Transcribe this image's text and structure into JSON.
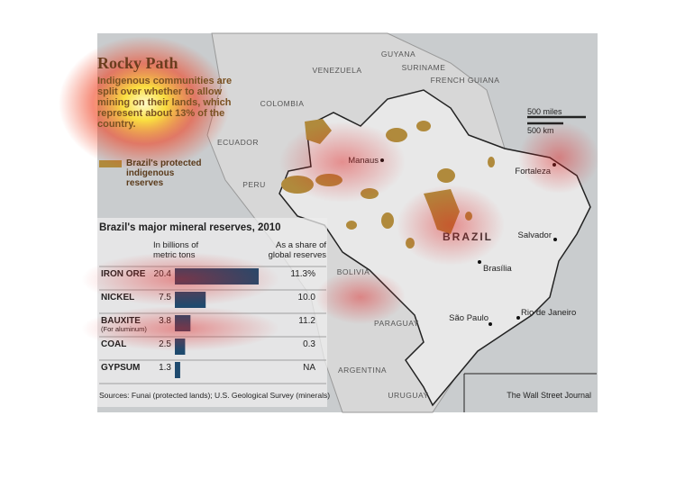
{
  "header": {
    "title": "Rocky Path",
    "subtitle": "Indigenous communities are split over whether to allow mining on their lands, which represent about 13% of the country."
  },
  "legend": {
    "label": "Brazil's protected indigenous reserves"
  },
  "map": {
    "countries": [
      "VENEZUELA",
      "GUYANA",
      "SURINAME",
      "FRENCH GUIANA",
      "COLOMBIA",
      "ECUADOR",
      "PERU",
      "BOLIVIA",
      "PARAGUAY",
      "ARGENTINA",
      "URUGUAY",
      "BRAZIL"
    ],
    "cities": [
      "Manaus",
      "Fortaleza",
      "Salvador",
      "Brasília",
      "São Paulo",
      "Rio de Janeiro"
    ],
    "scale": [
      "500 miles",
      "500 km"
    ]
  },
  "table": {
    "title": "Brazil's major mineral reserves, 2010",
    "columns": [
      "In billions of metric tons",
      "As a share of global reserves"
    ],
    "rows": [
      {
        "name": "IRON ORE",
        "value": 20.4,
        "share": "11.3%"
      },
      {
        "name": "NICKEL",
        "value": 7.5,
        "share": "10.0"
      },
      {
        "name": "BAUXITE",
        "note": "(For aluminum)",
        "value": 3.8,
        "share": "11.2"
      },
      {
        "name": "COAL",
        "value": 2.5,
        "share": "0.3"
      },
      {
        "name": "GYPSUM",
        "value": 1.3,
        "share": "NA"
      }
    ],
    "source": "Sources: Funai (protected lands); U.S. Geological Survey (minerals)"
  },
  "credit": "The Wall Street Journal"
}
